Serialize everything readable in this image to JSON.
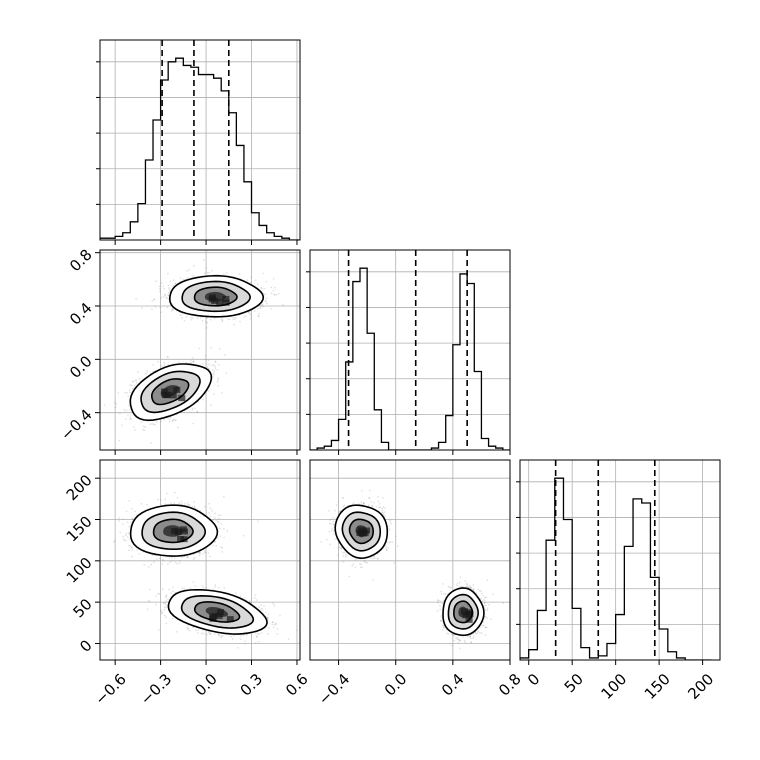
{
  "chart_data": [
    {
      "panel": "hist-p0",
      "type": "histogram",
      "variable_index": 0,
      "bins_edges": [
        -0.7,
        -0.65,
        -0.6,
        -0.55,
        -0.5,
        -0.45,
        -0.4,
        -0.35,
        -0.3,
        -0.25,
        -0.2,
        -0.15,
        -0.1,
        -0.05,
        0.0,
        0.05,
        0.1,
        0.15,
        0.2,
        0.25,
        0.3,
        0.35,
        0.4,
        0.45,
        0.5,
        0.55,
        0.6,
        0.65
      ],
      "counts": [
        1,
        1,
        2,
        4,
        10,
        20,
        44,
        66,
        88,
        98,
        100,
        96,
        95,
        91,
        91,
        89,
        82,
        70,
        52,
        32,
        15,
        8,
        4,
        2,
        1,
        0,
        0
      ],
      "quantile_lines": [
        -0.29,
        -0.08,
        0.15
      ],
      "xlim": [
        -0.7,
        0.62
      ],
      "xticks": [
        -0.6,
        -0.3,
        0.0,
        0.3,
        0.6
      ],
      "grid": true
    },
    {
      "panel": "hist-p1",
      "type": "histogram",
      "variable_index": 1,
      "bins_edges": [
        -0.6,
        -0.55,
        -0.5,
        -0.45,
        -0.4,
        -0.35,
        -0.3,
        -0.25,
        -0.2,
        -0.15,
        -0.1,
        -0.05,
        0.0,
        0.05,
        0.1,
        0.15,
        0.2,
        0.25,
        0.3,
        0.35,
        0.4,
        0.45,
        0.5,
        0.55,
        0.6,
        0.65,
        0.7,
        0.75,
        0.8
      ],
      "counts": [
        0,
        1,
        2,
        5,
        16,
        46,
        88,
        95,
        61,
        21,
        4,
        0,
        0,
        0,
        0,
        0,
        0,
        1,
        4,
        18,
        55,
        92,
        87,
        41,
        6,
        2,
        1,
        0
      ],
      "quantile_lines": [
        -0.33,
        0.14,
        0.5
      ],
      "xlim": [
        -0.6,
        0.8
      ],
      "xticks": [
        -0.4,
        0.0,
        0.4,
        0.8
      ],
      "grid": true
    },
    {
      "panel": "hist-p2",
      "type": "histogram",
      "variable_index": 2,
      "bins_edges": [
        -10,
        0,
        10,
        20,
        30,
        40,
        50,
        60,
        70,
        80,
        90,
        100,
        110,
        120,
        130,
        140,
        150,
        160,
        170,
        180,
        190,
        200,
        210
      ],
      "counts": [
        1,
        5,
        24,
        58,
        88,
        68,
        25,
        6,
        1,
        2,
        8,
        22,
        55,
        78,
        76,
        40,
        15,
        4,
        1,
        0,
        0,
        0
      ],
      "quantile_lines": [
        31,
        80,
        145
      ],
      "xlim": [
        -10,
        220
      ],
      "xticks": [
        0,
        50,
        100,
        150,
        200
      ],
      "grid": true
    },
    {
      "panel": "2d-p0-p1",
      "type": "scatter",
      "x_variable": 0,
      "y_variable": 1,
      "clusters": [
        {
          "center": [
            0.06,
            0.47
          ],
          "sd": [
            0.14,
            0.07
          ],
          "level_radii": [
            0.5,
            1.0,
            1.6,
            2.2
          ],
          "points": 1600
        },
        {
          "center": [
            -0.24,
            -0.24
          ],
          "sd": [
            0.13,
            0.08
          ],
          "level_radii": [
            0.5,
            1.0,
            1.6,
            2.2
          ],
          "tilt_deg": 25,
          "points": 1600
        }
      ],
      "xlim": [
        -0.7,
        0.62
      ],
      "ylim": [
        -0.68,
        0.82
      ],
      "xticks": [
        -0.6,
        -0.3,
        0.0,
        0.3,
        0.6
      ],
      "yticks": [
        -0.4,
        0.0,
        0.4,
        0.8
      ],
      "grid": true
    },
    {
      "panel": "2d-p0-p2",
      "type": "scatter",
      "x_variable": 0,
      "y_variable": 2,
      "clusters": [
        {
          "center": [
            -0.22,
            136
          ],
          "sd": [
            0.13,
            14
          ],
          "level_radii": [
            0.5,
            1.0,
            1.6,
            2.2
          ],
          "points": 1600
        },
        {
          "center": [
            0.07,
            38
          ],
          "sd": [
            0.15,
            11
          ],
          "level_radii": [
            0.5,
            1.0,
            1.6,
            2.2
          ],
          "tilt_deg": -12,
          "points": 1600
        }
      ],
      "xlim": [
        -0.7,
        0.62
      ],
      "ylim": [
        -20,
        222
      ],
      "xticks": [
        -0.6,
        -0.3,
        0.0,
        0.3,
        0.6
      ],
      "yticks": [
        0,
        50,
        100,
        150,
        200
      ],
      "grid": true
    },
    {
      "panel": "2d-p1-p2",
      "type": "scatter",
      "x_variable": 1,
      "y_variable": 2,
      "clusters": [
        {
          "center": [
            -0.24,
            136
          ],
          "sd": [
            0.08,
            15
          ],
          "level_radii": [
            0.5,
            1.0,
            1.6,
            2.2
          ],
          "tilt_deg": 40,
          "points": 1600
        },
        {
          "center": [
            0.47,
            38
          ],
          "sd": [
            0.065,
            13
          ],
          "level_radii": [
            0.5,
            1.0,
            1.6,
            2.2
          ],
          "points": 1600
        }
      ],
      "xlim": [
        -0.6,
        0.8
      ],
      "ylim": [
        -20,
        222
      ],
      "xticks": [
        -0.4,
        0.0,
        0.4,
        0.8
      ],
      "yticks": [
        0,
        50,
        100,
        150,
        200
      ],
      "grid": true
    }
  ],
  "tick_labels": {
    "p0_x": [
      "−0.6",
      "−0.3",
      "0.0",
      "0.3",
      "0.6"
    ],
    "p1_y": [
      "−0.4",
      "0.0",
      "0.4",
      "0.8"
    ],
    "p1_x": [
      "−0.4",
      "0.0",
      "0.4",
      "0.8"
    ],
    "p2_y": [
      "0",
      "50",
      "100",
      "150",
      "200"
    ],
    "p2_x": [
      "0",
      "50",
      "100",
      "150",
      "200"
    ]
  },
  "colors": {
    "line": "#000000",
    "grid": "#b0b0b0",
    "points": "#888888",
    "background": "#ffffff"
  }
}
